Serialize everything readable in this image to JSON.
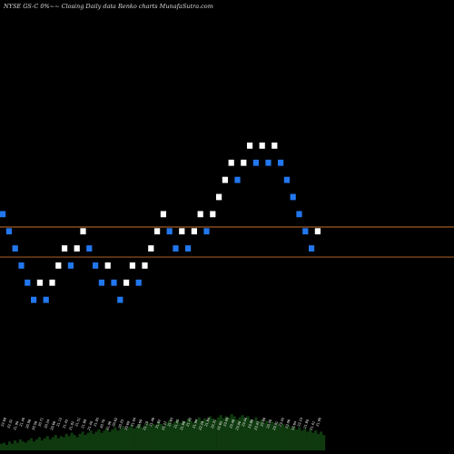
{
  "header": {
    "title": "NYSE GS-C 0%~~  Closing Daily data  Renko  charts MunafaSutra.com"
  },
  "chart_data": {
    "type": "renko",
    "title": "NYSE GS-C 0%~~  Closing Daily data  Renko  charts MunafaSutra.com",
    "xlabel": "",
    "ylabel": "",
    "colors": {
      "up": "#ffffff",
      "down": "#2277ee",
      "reference_line": "#c8702a",
      "volume": "#0f3a0f",
      "background": "#000000"
    },
    "ylim": [
      16.6,
      27.2
    ],
    "bricks": [
      {
        "level": 22.2,
        "dir": "down",
        "date": "22.69"
      },
      {
        "level": 21.8,
        "dir": "down",
        "date": "22.32"
      },
      {
        "level": 21.4,
        "dir": "down",
        "date": "21.90"
      },
      {
        "level": 21.0,
        "dir": "down",
        "date": "21.40"
      },
      {
        "level": 20.6,
        "dir": "down",
        "date": "20.98"
      },
      {
        "level": 20.2,
        "dir": "down",
        "date": "20.58"
      },
      {
        "level": 20.6,
        "dir": "up",
        "date": "20.71"
      },
      {
        "level": 20.2,
        "dir": "down",
        "date": "20.24"
      },
      {
        "level": 20.6,
        "dir": "up",
        "date": "20.66"
      },
      {
        "level": 21.0,
        "dir": "up",
        "date": "21.12"
      },
      {
        "level": 21.4,
        "dir": "up",
        "date": "21.45"
      },
      {
        "level": 21.0,
        "dir": "down",
        "date": "21.02"
      },
      {
        "level": 21.4,
        "dir": "up",
        "date": "21.51"
      },
      {
        "level": 21.8,
        "dir": "up",
        "date": "21.89"
      },
      {
        "level": 21.4,
        "dir": "down",
        "date": "21.40"
      },
      {
        "level": 21.0,
        "dir": "down",
        "date": "21.05"
      },
      {
        "level": 20.6,
        "dir": "down",
        "date": "20.70"
      },
      {
        "level": 21.0,
        "dir": "up",
        "date": "21.06"
      },
      {
        "level": 20.6,
        "dir": "down",
        "date": "20.62"
      },
      {
        "level": 20.2,
        "dir": "down",
        "date": "20.25"
      },
      {
        "level": 20.6,
        "dir": "up",
        "date": "20.69"
      },
      {
        "level": 21.0,
        "dir": "up",
        "date": "21.04"
      },
      {
        "level": 20.6,
        "dir": "down",
        "date": "20.60"
      },
      {
        "level": 21.0,
        "dir": "up",
        "date": "21.10"
      },
      {
        "level": 21.4,
        "dir": "up",
        "date": "21.46"
      },
      {
        "level": 21.8,
        "dir": "up",
        "date": "21.82"
      },
      {
        "level": 22.2,
        "dir": "up",
        "date": "22.27"
      },
      {
        "level": 21.8,
        "dir": "down",
        "date": "21.83"
      },
      {
        "level": 21.4,
        "dir": "down",
        "date": "21.45"
      },
      {
        "level": 21.8,
        "dir": "up",
        "date": "21.86"
      },
      {
        "level": 21.4,
        "dir": "down",
        "date": "21.42"
      },
      {
        "level": 21.8,
        "dir": "up",
        "date": "21.94"
      },
      {
        "level": 22.2,
        "dir": "up",
        "date": "22.29"
      },
      {
        "level": 21.8,
        "dir": "down",
        "date": "21.84"
      },
      {
        "level": 22.2,
        "dir": "up",
        "date": "22.31"
      },
      {
        "level": 22.6,
        "dir": "up",
        "date": "22.65"
      },
      {
        "level": 23.0,
        "dir": "up",
        "date": "23.09"
      },
      {
        "level": 23.4,
        "dir": "up",
        "date": "23.48"
      },
      {
        "level": 23.0,
        "dir": "down",
        "date": "23.00"
      },
      {
        "level": 23.4,
        "dir": "up",
        "date": "23.44"
      },
      {
        "level": 23.8,
        "dir": "up",
        "date": "23.86"
      },
      {
        "level": 23.4,
        "dir": "down",
        "date": "23.43"
      },
      {
        "level": 23.8,
        "dir": "up",
        "date": "23.88"
      },
      {
        "level": 23.4,
        "dir": "down",
        "date": "23.40"
      },
      {
        "level": 23.8,
        "dir": "up",
        "date": "23.91"
      },
      {
        "level": 23.4,
        "dir": "down",
        "date": "23.45"
      },
      {
        "level": 23.0,
        "dir": "down",
        "date": "23.06"
      },
      {
        "level": 22.6,
        "dir": "down",
        "date": "22.64"
      },
      {
        "level": 22.2,
        "dir": "down",
        "date": "22.23"
      },
      {
        "level": 21.8,
        "dir": "down",
        "date": "21.80"
      },
      {
        "level": 21.4,
        "dir": "down",
        "date": "21.41"
      },
      {
        "level": 21.8,
        "dir": "up",
        "date": "21.90"
      }
    ],
    "reference_lines": [
      21.9,
      21.2
    ],
    "volume": [
      6,
      7,
      5,
      8,
      6,
      9,
      7,
      10,
      8,
      7,
      9,
      11,
      8,
      10,
      12,
      9,
      11,
      13,
      10,
      12,
      14,
      11,
      13,
      12,
      15,
      13,
      16,
      14,
      12,
      15,
      17,
      14,
      16,
      18,
      15,
      17,
      19,
      16,
      18,
      20,
      17,
      19,
      21,
      18,
      20,
      22,
      19,
      21,
      23,
      20,
      22,
      24,
      21,
      23,
      25,
      22,
      24,
      23,
      26,
      24,
      22,
      25,
      27,
      24,
      26,
      28,
      25,
      27,
      26,
      29,
      27,
      25,
      28,
      30,
      27,
      29,
      28,
      31,
      29,
      27,
      30,
      32,
      29,
      31,
      30,
      33,
      31,
      28,
      30,
      32,
      29,
      31,
      28,
      27,
      30,
      26,
      28,
      25,
      27,
      24,
      26,
      23,
      25,
      22,
      24,
      21,
      23,
      20,
      22,
      19,
      21,
      18,
      20,
      17,
      19,
      16,
      18,
      15,
      17,
      14
    ]
  }
}
